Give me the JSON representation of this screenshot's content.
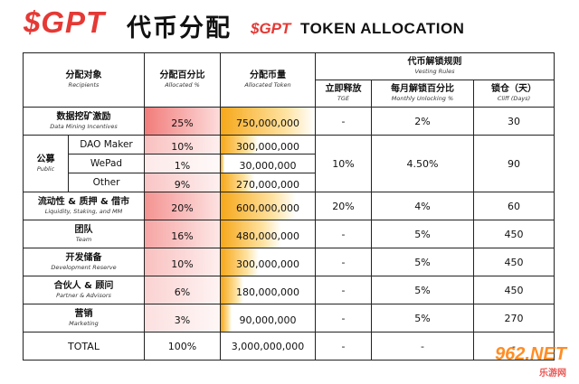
{
  "header": {
    "gpt": "$GPT",
    "title_cn": "代币分配",
    "gpt_small": "$GPT",
    "title_en": "TOKEN ALLOCATION"
  },
  "columns": {
    "recipients_cn": "分配对象",
    "recipients_en": "Recipients",
    "allocated_pct_cn": "分配百分比",
    "allocated_pct_en": "Allocated %",
    "allocated_token_cn": "分配币量",
    "allocated_token_en": "Allocated Token",
    "vesting_cn": "代币解锁规则",
    "vesting_en": "Vesting Rules",
    "tge_cn": "立即释放",
    "tge_en": "TGE",
    "monthly_cn": "每月解锁百分比",
    "monthly_en": "Monthly Unlocking %",
    "cliff_cn": "锁仓（天）",
    "cliff_en": "Cliff (Days)"
  },
  "rows": {
    "mining": {
      "cn": "数据挖矿激励",
      "en": "Data Mining Incentives",
      "pct": "25%",
      "tokens": "750,000,000",
      "tge": "-",
      "monthly": "2%",
      "cliff": "30",
      "pct_value": 25
    },
    "public": {
      "cn": "公募",
      "en": "Public",
      "tge": "10%",
      "monthly": "4.50%",
      "cliff": "90"
    },
    "dao": {
      "name": "DAO Maker",
      "pct": "10%",
      "tokens": "300,000,000",
      "pct_value": 10
    },
    "wepad": {
      "name": "WePad",
      "pct": "1%",
      "tokens": "30,000,000",
      "pct_value": 1
    },
    "other": {
      "name": "Other",
      "pct": "9%",
      "tokens": "270,000,000",
      "pct_value": 9
    },
    "liquidity": {
      "cn": "流动性 & 质押 & 借市",
      "en": "Liquidity, Staking, and MM",
      "pct": "20%",
      "tokens": "600,000,000",
      "tge": "20%",
      "monthly": "4%",
      "cliff": "60",
      "pct_value": 20
    },
    "team": {
      "cn": "团队",
      "en": "Team",
      "pct": "16%",
      "tokens": "480,000,000",
      "tge": "-",
      "monthly": "5%",
      "cliff": "450",
      "pct_value": 16
    },
    "dev": {
      "cn": "开发储备",
      "en": "Development Reserve",
      "pct": "10%",
      "tokens": "300,000,000",
      "tge": "-",
      "monthly": "5%",
      "cliff": "450",
      "pct_value": 10
    },
    "partner": {
      "cn": "合伙人 & 顾问",
      "en": "Partner & Advisors",
      "pct": "6%",
      "tokens": "180,000,000",
      "tge": "-",
      "monthly": "5%",
      "cliff": "450",
      "pct_value": 6
    },
    "marketing": {
      "cn": "营销",
      "en": "Marketing",
      "pct": "3%",
      "tokens": "90,000,000",
      "tge": "-",
      "monthly": "5%",
      "cliff": "270",
      "pct_value": 3
    },
    "total": {
      "label": "TOTAL",
      "pct": "100%",
      "tokens": "3,000,000,000",
      "tge": "-",
      "monthly": "-",
      "cliff": "-"
    }
  },
  "watermark": {
    "brand": "962.NET",
    "cn": "乐游网"
  },
  "colors": {
    "red": "#e53935",
    "pct_fill": "#f07a78",
    "token_fill": "#f6a81a"
  }
}
